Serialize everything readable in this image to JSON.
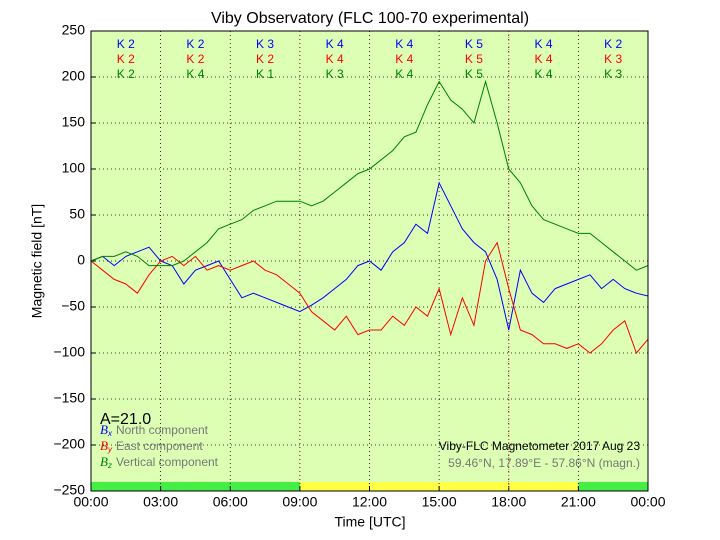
{
  "chart_data": {
    "type": "line",
    "title": "Viby Observatory (FLC 100-70 experimental)",
    "xlabel": "Time [UTC]",
    "ylabel": "Magnetic field [nT]",
    "x": [
      0,
      0.5,
      1,
      1.5,
      2,
      2.5,
      3,
      3.5,
      4,
      4.5,
      5,
      5.5,
      6,
      6.5,
      7,
      7.5,
      8,
      8.5,
      9,
      9.5,
      10,
      10.5,
      11,
      11.5,
      12,
      12.5,
      13,
      13.5,
      14,
      14.5,
      15,
      15.5,
      16,
      16.5,
      17,
      17.5,
      18,
      18.5,
      19,
      19.5,
      20,
      20.5,
      21,
      21.5,
      22,
      22.5,
      23,
      23.5,
      24
    ],
    "series": [
      {
        "symbol": "B",
        "sub": "x",
        "name": "North component",
        "color": "#0000ff",
        "k_labels": [
          "K 2",
          "K 2",
          "K 3",
          "K 4",
          "K 4",
          "K 5",
          "K 4",
          "K 2"
        ],
        "values": [
          0,
          5,
          -5,
          5,
          10,
          15,
          0,
          -5,
          -25,
          -10,
          -5,
          0,
          -20,
          -40,
          -35,
          -40,
          -45,
          -50,
          -55,
          -48,
          -40,
          -30,
          -20,
          -5,
          0,
          -10,
          10,
          20,
          40,
          30,
          85,
          60,
          35,
          20,
          10,
          -20,
          -75,
          -10,
          -35,
          -45,
          -30,
          -25,
          -20,
          -15,
          -30,
          -20,
          -30,
          -35,
          -38
        ]
      },
      {
        "symbol": "B",
        "sub": "y",
        "name": "East component",
        "color": "#ff0000",
        "k_labels": [
          "K 2",
          "K 2",
          "K 2",
          "K 4",
          "K 4",
          "K 5",
          "K 4",
          "K 3"
        ],
        "values": [
          0,
          -10,
          -20,
          -25,
          -35,
          -15,
          0,
          5,
          -5,
          5,
          -10,
          -5,
          -10,
          -5,
          0,
          -10,
          -15,
          -25,
          -35,
          -55,
          -65,
          -75,
          -60,
          -80,
          -75,
          -75,
          -60,
          -70,
          -50,
          -60,
          -30,
          -80,
          -40,
          -70,
          0,
          20,
          -30,
          -75,
          -80,
          -90,
          -90,
          -95,
          -90,
          -100,
          -90,
          -75,
          -65,
          -100,
          -85
        ]
      },
      {
        "symbol": "B",
        "sub": "z",
        "name": "Vertical component",
        "color": "#008000",
        "k_labels": [
          "K 2",
          "K 4",
          "K 1",
          "K 3",
          "K 4",
          "K 5",
          "K 4",
          "K 3"
        ],
        "values": [
          0,
          5,
          5,
          10,
          5,
          -5,
          -5,
          -5,
          0,
          10,
          20,
          35,
          40,
          45,
          55,
          60,
          65,
          65,
          65,
          60,
          65,
          75,
          85,
          95,
          100,
          110,
          120,
          135,
          140,
          170,
          195,
          175,
          165,
          150,
          195,
          150,
          100,
          85,
          60,
          45,
          40,
          35,
          30,
          30,
          20,
          10,
          0,
          -10,
          -5
        ]
      }
    ],
    "xlim": [
      0,
      24
    ],
    "ylim": [
      -250,
      250
    ],
    "xticks": [
      {
        "value": 0,
        "label": "00:00"
      },
      {
        "value": 3,
        "label": "03:00"
      },
      {
        "value": 6,
        "label": "06:00"
      },
      {
        "value": 9,
        "label": "09:00"
      },
      {
        "value": 12,
        "label": "12:00"
      },
      {
        "value": 15,
        "label": "15:00"
      },
      {
        "value": 18,
        "label": "18:00"
      },
      {
        "value": 21,
        "label": "21:00"
      },
      {
        "value": 24,
        "label": "00:00"
      }
    ],
    "yticks": [
      {
        "value": -250,
        "label": "−250"
      },
      {
        "value": -200,
        "label": "−200"
      },
      {
        "value": -150,
        "label": "−150"
      },
      {
        "value": -100,
        "label": "−100"
      },
      {
        "value": -50,
        "label": "−50"
      },
      0,
      50,
      100,
      150,
      200,
      250
    ],
    "grid": true,
    "background": "#dcffb4",
    "marker_x": 18,
    "a_index": "A=21.0",
    "station": "Viby-FLC Magnetometer 2017 Aug 23",
    "location": "59.46°N, 17.89°E - 57.86°N (magn.)",
    "status_bar": [
      {
        "from": 0,
        "to": 9,
        "color": "#44ee44"
      },
      {
        "from": 9,
        "to": 21,
        "color": "#ffff44"
      },
      {
        "from": 21,
        "to": 24,
        "color": "#44ee44"
      }
    ]
  }
}
